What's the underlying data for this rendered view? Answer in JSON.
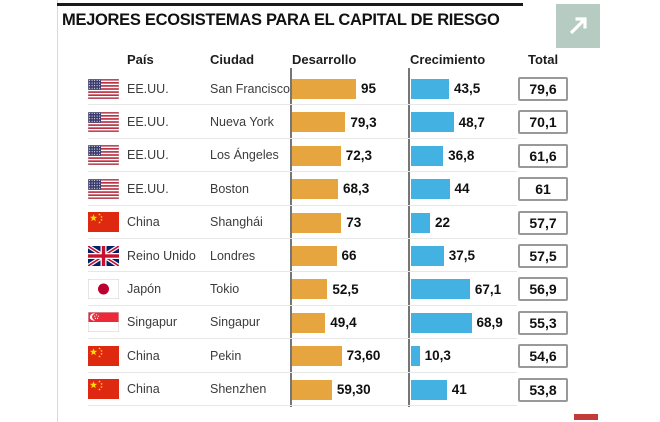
{
  "header": {
    "title": "MEJORES ECOSISTEMAS PARA EL CAPITAL DE RIESGO"
  },
  "icons": {
    "expand": "arrow-up-right"
  },
  "table": {
    "columns": {
      "pais": "País",
      "ciudad": "Ciudad",
      "desarrollo": "Desarrollo",
      "crecimiento": "Crecimiento",
      "total": "Total"
    }
  },
  "colors": {
    "desarrollo_bar": "#e7a53f",
    "crecimiento_bar": "#43b1e2",
    "expand_button": "#b6ccc3",
    "logo_fragment": "#c23b38",
    "axis": "#767676"
  },
  "chart_data": {
    "type": "bar",
    "title": "MEJORES ECOSISTEMAS PARA EL CAPITAL DE RIESGO",
    "columns": [
      "País",
      "Ciudad",
      "Desarrollo",
      "Crecimiento",
      "Total"
    ],
    "legend_position": "none",
    "grid": false,
    "series": [
      {
        "name": "Desarrollo",
        "color": "#e7a53f",
        "axis_max": 95
      },
      {
        "name": "Crecimiento",
        "color": "#43b1e2",
        "axis_max": 68.9
      }
    ],
    "rows": [
      {
        "flag": "us",
        "country": "EE.UU.",
        "city": "San Francisco",
        "desarrollo": 95,
        "desarrollo_label": "95",
        "crecimiento": 43.5,
        "crecimiento_label": "43,5",
        "total": 79.6,
        "total_label": "79,6"
      },
      {
        "flag": "us",
        "country": "EE.UU.",
        "city": "Nueva York",
        "desarrollo": 79.3,
        "desarrollo_label": "79,3",
        "crecimiento": 48.7,
        "crecimiento_label": "48,7",
        "total": 70.1,
        "total_label": "70,1"
      },
      {
        "flag": "us",
        "country": "EE.UU.",
        "city": "Los Ángeles",
        "desarrollo": 72.3,
        "desarrollo_label": "72,3",
        "crecimiento": 36.8,
        "crecimiento_label": "36,8",
        "total": 61.6,
        "total_label": "61,6"
      },
      {
        "flag": "us",
        "country": "EE.UU.",
        "city": "Boston",
        "desarrollo": 68.3,
        "desarrollo_label": "68,3",
        "crecimiento": 44,
        "crecimiento_label": "44",
        "total": 61,
        "total_label": "61"
      },
      {
        "flag": "cn",
        "country": "China",
        "city": "Shanghái",
        "desarrollo": 73,
        "desarrollo_label": "73",
        "crecimiento": 22,
        "crecimiento_label": "22",
        "total": 57.7,
        "total_label": "57,7"
      },
      {
        "flag": "gb",
        "country": "Reino Unido",
        "city": "Londres",
        "desarrollo": 66,
        "desarrollo_label": "66",
        "crecimiento": 37.5,
        "crecimiento_label": "37,5",
        "total": 57.5,
        "total_label": "57,5"
      },
      {
        "flag": "jp",
        "country": "Japón",
        "city": "Tokio",
        "desarrollo": 52.5,
        "desarrollo_label": "52,5",
        "crecimiento": 67.1,
        "crecimiento_label": "67,1",
        "total": 56.9,
        "total_label": "56,9"
      },
      {
        "flag": "sg",
        "country": "Singapur",
        "city": "Singapur",
        "desarrollo": 49.4,
        "desarrollo_label": "49,4",
        "crecimiento": 68.9,
        "crecimiento_label": "68,9",
        "total": 55.3,
        "total_label": "55,3"
      },
      {
        "flag": "cn",
        "country": "China",
        "city": "Pekin",
        "desarrollo": 73.6,
        "desarrollo_label": "73,60",
        "crecimiento": 10.3,
        "crecimiento_label": "10,3",
        "total": 54.6,
        "total_label": "54,6"
      },
      {
        "flag": "cn",
        "country": "China",
        "city": "Shenzhen",
        "desarrollo": 59.3,
        "desarrollo_label": "59,30",
        "crecimiento": 41,
        "crecimiento_label": "41",
        "total": 53.8,
        "total_label": "53,8"
      }
    ]
  }
}
